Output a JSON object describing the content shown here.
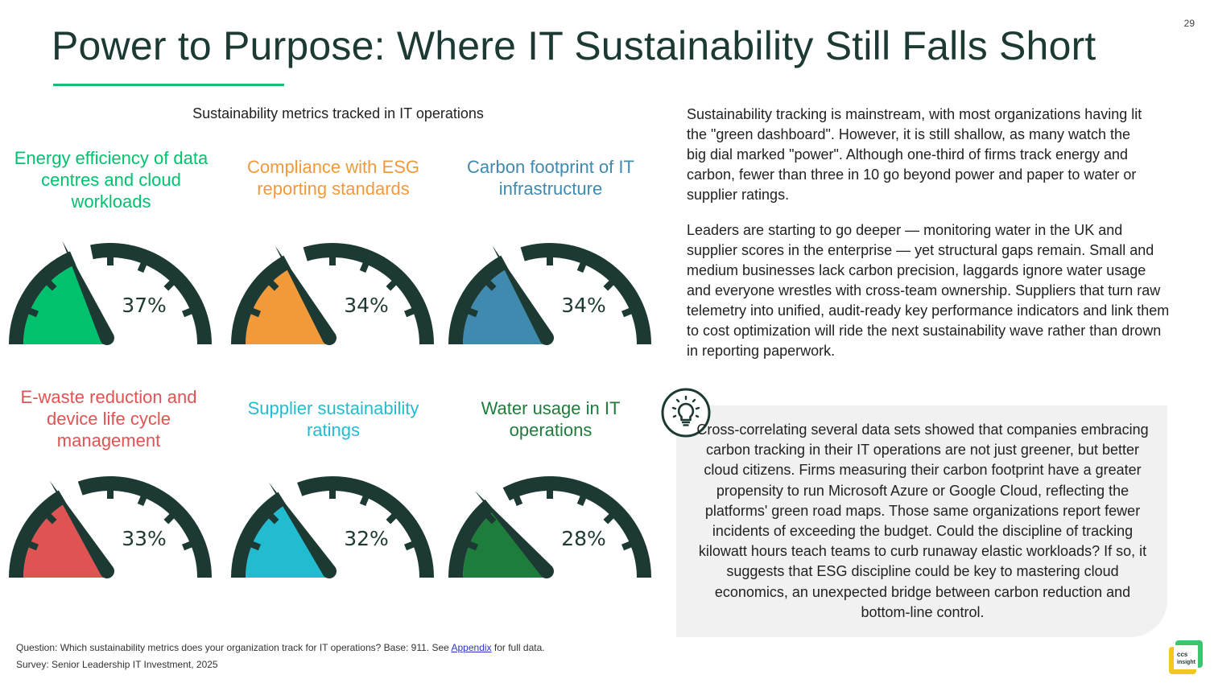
{
  "page_number": "29",
  "title": "Power to Purpose: Where IT Sustainability Still Falls Short",
  "colors": {
    "accent": "#1dbb7a",
    "dark": "#1c3a33"
  },
  "chart_data": {
    "type": "gauge",
    "title": "Sustainability metrics tracked in IT operations",
    "unit": "%",
    "range": [
      0,
      100
    ],
    "items": [
      {
        "label": "Energy efficiency of data centres and cloud workloads",
        "value": 37,
        "display": "37%",
        "color": "#00c26e"
      },
      {
        "label": "Compliance with ESG reporting standards",
        "value": 34,
        "display": "34%",
        "color": "#f29a3a"
      },
      {
        "label": "Carbon footprint of IT infrastructure",
        "value": 34,
        "display": "34%",
        "color": "#3f8aae"
      },
      {
        "label": "E-waste reduction and device life cycle management",
        "value": 33,
        "display": "33%",
        "color": "#e05353"
      },
      {
        "label": "Supplier sustainability ratings",
        "value": 32,
        "display": "32%",
        "color": "#22bcd1"
      },
      {
        "label": "Water usage in IT operations",
        "value": 28,
        "display": "28%",
        "color": "#1f7d3c"
      }
    ]
  },
  "body": {
    "paragraph1": "Sustainability tracking is mainstream, with most organizations having lit the \"green dashboard\". However, it is still shallow, as many watch the big dial marked \"power\". Although one-third of firms track energy and carbon, fewer than three in 10 go beyond power and paper to water or supplier ratings.",
    "paragraph2": "Leaders are starting to go deeper — monitoring water in the UK and supplier scores in the enterprise — yet structural gaps remain. Small and medium businesses lack carbon precision, laggards ignore water usage and everyone wrestles with cross-team ownership. Suppliers that turn raw telemetry into unified, audit-ready key performance indicators and link them to cost optimization will ride the next sustainability wave rather than drown in reporting paperwork."
  },
  "callout": {
    "icon": "lightbulb-icon",
    "text": "Cross-correlating several data sets showed that companies embracing carbon tracking in their IT operations are not just greener, but better cloud citizens. Firms measuring their carbon footprint have a greater propensity to run Microsoft Azure or Google Cloud, reflecting the platforms' green road maps. Those same organizations report fewer incidents of exceeding the budget. Could the discipline of tracking kilowatt hours teach teams to curb runaway elastic workloads? If so, it suggests that ESG discipline could be key to mastering cloud economics, an unexpected bridge between carbon reduction and bottom-line control."
  },
  "footer": {
    "question_prefix": "Question: Which sustainability metrics does your organization track for IT operations? Base: 911. See ",
    "link_text": "Appendix",
    "question_suffix": " for full data.",
    "survey": "Survey: Senior Leadership IT Investment, 2025"
  },
  "logo": {
    "line1": "ccs",
    "line2": "insight"
  }
}
